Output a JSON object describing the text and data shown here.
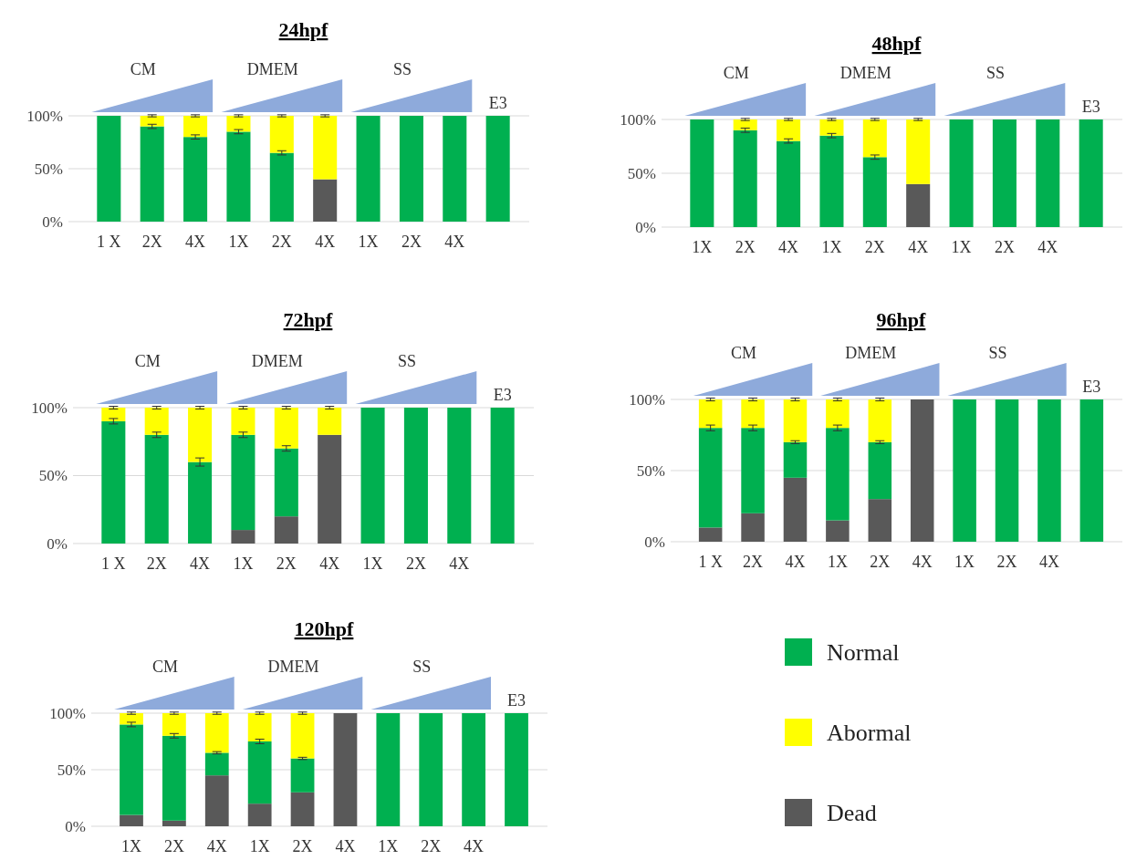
{
  "chart_data": [
    {
      "type": "bar",
      "title": "24hpf",
      "stacked": true,
      "grid": "y",
      "categories": [
        "1 X",
        "2X",
        "4X",
        "1X",
        "2X",
        "4X",
        "1X",
        "2X",
        "4X",
        null
      ],
      "annotations": [
        "CM",
        "DMEM",
        "SS",
        "E3"
      ],
      "ylim": [
        0,
        100
      ],
      "yticks": [
        {
          "value": 0,
          "label": "0%"
        },
        {
          "value": 50,
          "label": "50%"
        },
        {
          "value": 100,
          "label": "100%"
        }
      ],
      "series": [
        {
          "color": "#595959",
          "values": [
            0,
            0,
            0,
            0,
            0,
            40,
            0,
            0,
            0,
            0
          ]
        },
        {
          "color": "#00b050",
          "values": [
            100,
            90,
            80,
            85,
            65,
            0,
            100,
            100,
            100,
            100
          ],
          "errors": [
            null,
            2,
            2,
            2,
            2,
            null,
            null,
            null,
            null,
            null
          ]
        },
        {
          "color": "#ffff00",
          "values": [
            0,
            10,
            20,
            15,
            35,
            60,
            0,
            0,
            0,
            0
          ],
          "errors": [
            null,
            1,
            1,
            1,
            1,
            1,
            null,
            null,
            null,
            null
          ]
        }
      ]
    },
    {
      "type": "bar",
      "title": "48hpf",
      "stacked": true,
      "grid": "y",
      "categories": [
        "1X",
        "2X",
        "4X",
        "1X",
        "2X",
        "4X",
        "1X",
        "2X",
        "4X",
        null
      ],
      "annotations": [
        "CM",
        "DMEM",
        "SS",
        "E3"
      ],
      "ylim": [
        0,
        100
      ],
      "yticks": [
        {
          "value": 0,
          "label": "0%"
        },
        {
          "value": 50,
          "label": "50%"
        },
        {
          "value": 100,
          "label": "100%"
        }
      ],
      "series": [
        {
          "color": "#595959",
          "values": [
            0,
            0,
            0,
            0,
            0,
            40,
            0,
            0,
            0,
            0
          ]
        },
        {
          "color": "#00b050",
          "values": [
            100,
            90,
            80,
            85,
            65,
            0,
            100,
            100,
            100,
            100
          ],
          "errors": [
            null,
            2,
            2,
            2,
            2,
            null,
            null,
            null,
            null,
            null
          ]
        },
        {
          "color": "#ffff00",
          "values": [
            0,
            10,
            20,
            15,
            35,
            60,
            0,
            0,
            0,
            0
          ],
          "errors": [
            null,
            1,
            1,
            1,
            1,
            1,
            null,
            null,
            null,
            null
          ]
        }
      ]
    },
    {
      "type": "bar",
      "title": "72hpf",
      "stacked": true,
      "grid": "y",
      "categories": [
        "1 X",
        "2X",
        "4X",
        "1X",
        "2X",
        "4X",
        "1X",
        "2X",
        "4X",
        null
      ],
      "annotations": [
        "CM",
        "DMEM",
        "SS",
        "E3"
      ],
      "ylim": [
        0,
        100
      ],
      "yticks": [
        {
          "value": 0,
          "label": "0%"
        },
        {
          "value": 50,
          "label": "50%"
        },
        {
          "value": 100,
          "label": "100%"
        }
      ],
      "series": [
        {
          "color": "#595959",
          "values": [
            0,
            0,
            0,
            10,
            20,
            80,
            0,
            0,
            0,
            0
          ]
        },
        {
          "color": "#00b050",
          "values": [
            90,
            80,
            60,
            70,
            50,
            0,
            100,
            100,
            100,
            100
          ],
          "errors": [
            2,
            2,
            3,
            2,
            2,
            null,
            null,
            null,
            null,
            null
          ]
        },
        {
          "color": "#ffff00",
          "values": [
            10,
            20,
            40,
            20,
            30,
            20,
            0,
            0,
            0,
            0
          ],
          "errors": [
            1,
            1,
            1,
            1,
            1,
            1,
            null,
            null,
            null,
            null
          ]
        }
      ]
    },
    {
      "type": "bar",
      "title": "96hpf",
      "stacked": true,
      "grid": "y",
      "categories": [
        "1 X",
        "2X",
        "4X",
        "1X",
        "2X",
        "4X",
        "1X",
        "2X",
        "4X",
        null
      ],
      "annotations": [
        "CM",
        "DMEM",
        "SS",
        "E3"
      ],
      "ylim": [
        0,
        100
      ],
      "yticks": [
        {
          "value": 0,
          "label": "0%"
        },
        {
          "value": 50,
          "label": "50%"
        },
        {
          "value": 100,
          "label": "100%"
        }
      ],
      "series": [
        {
          "color": "#595959",
          "values": [
            10,
            20,
            45,
            15,
            30,
            100,
            0,
            0,
            0,
            0
          ]
        },
        {
          "color": "#00b050",
          "values": [
            70,
            60,
            25,
            65,
            40,
            0,
            100,
            100,
            100,
            100
          ],
          "errors": [
            2,
            2,
            1,
            2,
            1,
            null,
            null,
            null,
            null,
            null
          ]
        },
        {
          "color": "#ffff00",
          "values": [
            20,
            20,
            30,
            20,
            30,
            0,
            0,
            0,
            0,
            0
          ],
          "errors": [
            1,
            1,
            1,
            1,
            1,
            null,
            null,
            null,
            null,
            null
          ]
        }
      ]
    },
    {
      "type": "bar",
      "title": "120hpf",
      "stacked": true,
      "grid": "y",
      "legend": "right",
      "categories": [
        "1X",
        "2X",
        "4X",
        "1X",
        "2X",
        "4X",
        "1X",
        "2X",
        "4X",
        null
      ],
      "annotations": [
        "CM",
        "DMEM",
        "SS",
        "E3"
      ],
      "ylim": [
        0,
        100
      ],
      "yticks": [
        {
          "value": 0,
          "label": "0%"
        },
        {
          "value": 50,
          "label": "50%"
        },
        {
          "value": 100,
          "label": "100%"
        }
      ],
      "series": [
        {
          "name": "Dead",
          "color": "#595959",
          "values": [
            10,
            5,
            45,
            20,
            30,
            100,
            0,
            0,
            0,
            0
          ]
        },
        {
          "name": "Normal",
          "color": "#00b050",
          "values": [
            80,
            75,
            20,
            55,
            30,
            0,
            100,
            100,
            100,
            100
          ],
          "errors": [
            2,
            2,
            1,
            2,
            1,
            null,
            null,
            null,
            null,
            null
          ]
        },
        {
          "name": "Abormal",
          "color": "#ffff00",
          "values": [
            10,
            20,
            35,
            25,
            40,
            0,
            0,
            0,
            0,
            0
          ],
          "errors": [
            1,
            1,
            1,
            1,
            1,
            null,
            null,
            null,
            null,
            null
          ]
        }
      ]
    }
  ]
}
